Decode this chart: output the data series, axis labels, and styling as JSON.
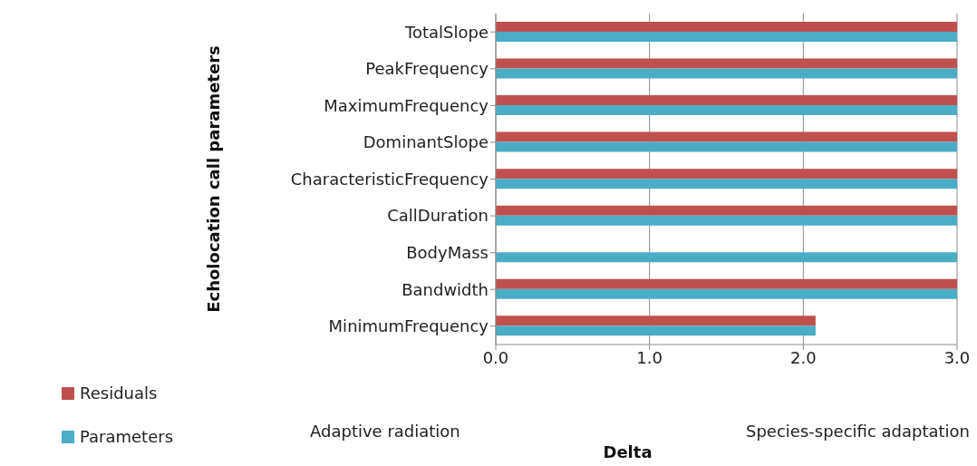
{
  "chart_data": {
    "type": "bar",
    "orientation": "horizontal",
    "xlabel": "Delta",
    "ylabel": "Echolocation call parameters",
    "categories": [
      "TotalSlope",
      "PeakFrequency",
      "MaximumFrequency",
      "DominantSlope",
      "CharacteristicFrequency",
      "CallDuration",
      "BodyMass",
      "Bandwidth",
      "MinimumFrequency"
    ],
    "series": [
      {
        "name": "Residuals",
        "color": "#c0504d",
        "values": [
          3.0,
          3.0,
          3.0,
          3.0,
          3.0,
          3.0,
          null,
          3.0,
          2.08
        ]
      },
      {
        "name": "Parameters",
        "color": "#4bacc6",
        "values": [
          3.0,
          3.0,
          3.0,
          3.0,
          3.0,
          3.0,
          3.0,
          3.0,
          2.08
        ]
      }
    ],
    "xlim": [
      0,
      3
    ],
    "xticks": [
      {
        "value": 0,
        "label": "0.0"
      },
      {
        "value": 1,
        "label": "1.0"
      },
      {
        "value": 2,
        "label": "2.0"
      },
      {
        "value": 3,
        "label": "3.0"
      }
    ],
    "grid": "x",
    "legend": "bottom left",
    "annotations": [
      "Adaptive radiation",
      "Species-specific adaptation"
    ]
  }
}
